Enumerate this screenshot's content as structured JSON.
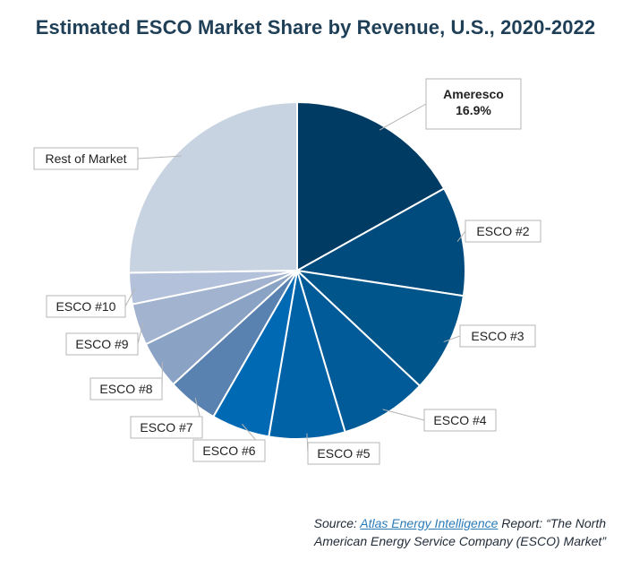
{
  "chart_data": {
    "type": "pie",
    "title": "Estimated ESCO Market Share by Revenue, U.S., 2020-2022",
    "slices": [
      {
        "label": "Ameresco",
        "value": 16.9,
        "value_label": "16.9%",
        "color": "#003b63"
      },
      {
        "label": "ESCO #2",
        "value": 10.5,
        "color": "#004b7d"
      },
      {
        "label": "ESCO #3",
        "value": 9.6,
        "color": "#00558b"
      },
      {
        "label": "ESCO #4",
        "value": 8.4,
        "color": "#005b98"
      },
      {
        "label": "ESCO #5",
        "value": 7.3,
        "color": "#0062a6"
      },
      {
        "label": "ESCO #6",
        "value": 5.6,
        "color": "#0069b4"
      },
      {
        "label": "ESCO #7",
        "value": 4.9,
        "color": "#5a82b0"
      },
      {
        "label": "ESCO #8",
        "value": 4.6,
        "color": "#8aa3c4"
      },
      {
        "label": "ESCO #9",
        "value": 4.0,
        "color": "#a1b3cf"
      },
      {
        "label": "ESCO #10",
        "value": 3.0,
        "color": "#b3c2da"
      },
      {
        "label": "Rest of Market",
        "value": 25.2,
        "color": "#c8d3e2"
      }
    ]
  },
  "source": {
    "prefix": "Source: ",
    "link_text": "Atlas Energy Intelligence",
    "line1_rest": " Report: “The North",
    "line2": "American Energy Service Company (ESCO) Market”"
  }
}
